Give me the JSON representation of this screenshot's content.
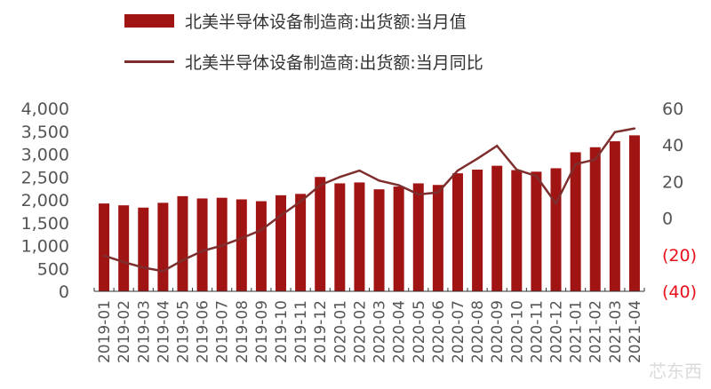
{
  "chart_data": {
    "type": "bar+line",
    "categories": [
      "2019-01",
      "2019-02",
      "2019-03",
      "2019-04",
      "2019-05",
      "2019-06",
      "2019-07",
      "2019-08",
      "2019-09",
      "2019-10",
      "2019-11",
      "2019-12",
      "2020-01",
      "2020-02",
      "2020-03",
      "2020-04",
      "2020-05",
      "2020-06",
      "2020-07",
      "2020-08",
      "2020-09",
      "2020-10",
      "2020-11",
      "2020-12",
      "2021-01",
      "2021-02",
      "2021-03",
      "2021-04"
    ],
    "series": [
      {
        "name": "北美半导体设备制造商:出货额:当月值",
        "type": "bar",
        "axis": "left",
        "color": "#a11414",
        "values": [
          1920,
          1880,
          1830,
          1935,
          2080,
          2030,
          2045,
          2010,
          1970,
          2100,
          2130,
          2500,
          2360,
          2380,
          2230,
          2290,
          2360,
          2325,
          2580,
          2660,
          2745,
          2650,
          2615,
          2690,
          3040,
          3150,
          3280,
          3410
        ]
      },
      {
        "name": "北美半导体设备制造商:出货额:当月同比",
        "type": "line",
        "axis": "right",
        "color": "#7f2e2e",
        "values": [
          -20.5,
          -24,
          -27,
          -29,
          -23,
          -18,
          -15,
          -11,
          -6.5,
          1.5,
          9,
          18,
          22.5,
          26,
          20.5,
          18,
          13,
          14,
          26,
          32.5,
          39.5,
          26.5,
          23,
          8,
          29.5,
          32,
          47,
          49
        ]
      }
    ],
    "left_axis": {
      "min": 0,
      "max": 4000,
      "ticks": [
        "0",
        "500",
        "1,000",
        "1,500",
        "2,000",
        "2,500",
        "3,000",
        "3,500",
        "4,000"
      ]
    },
    "right_axis": {
      "min": -40,
      "max": 60,
      "ticks": [
        "(40)",
        "(20)",
        "0",
        "20",
        "40",
        "60"
      ],
      "negative_color": "#e8101a"
    },
    "grid": false,
    "legend": "top"
  },
  "watermark": "芯东西"
}
